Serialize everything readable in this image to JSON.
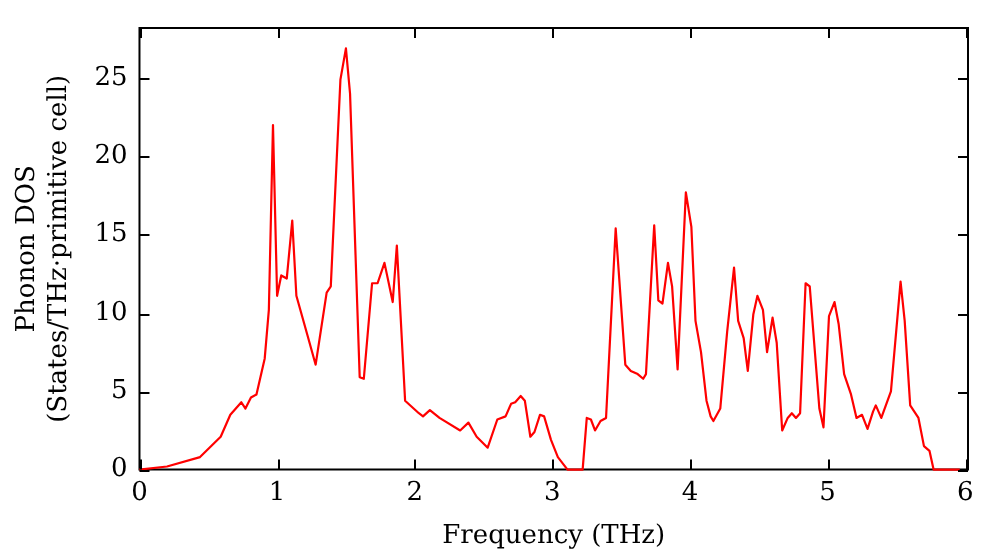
{
  "chart_data": {
    "type": "line",
    "xlabel": "Frequency (THz)",
    "ylabel": "Phonon DOS\n(States/THz·primitive cell)",
    "x": [
      0,
      0.2,
      0.44,
      0.59,
      0.66,
      0.74,
      0.77,
      0.81,
      0.85,
      0.91,
      0.94,
      0.97,
      1.0,
      1.03,
      1.07,
      1.11,
      1.14,
      1.22,
      1.28,
      1.36,
      1.39,
      1.46,
      1.5,
      1.53,
      1.6,
      1.63,
      1.69,
      1.73,
      1.78,
      1.79,
      1.84,
      1.87,
      1.93,
      2.03,
      2.06,
      2.11,
      2.18,
      2.33,
      2.39,
      2.45,
      2.53,
      2.6,
      2.66,
      2.7,
      2.73,
      2.77,
      2.8,
      2.84,
      2.87,
      2.91,
      2.94,
      2.99,
      3.04,
      3.11,
      3.22,
      3.25,
      3.28,
      3.31,
      3.35,
      3.39,
      3.46,
      3.53,
      3.57,
      3.62,
      3.66,
      3.68,
      3.74,
      3.77,
      3.8,
      3.84,
      3.87,
      3.91,
      3.97,
      4.01,
      4.04,
      4.08,
      4.12,
      4.15,
      4.17,
      4.22,
      4.27,
      4.32,
      4.35,
      4.39,
      4.42,
      4.46,
      4.49,
      4.53,
      4.56,
      4.6,
      4.63,
      4.67,
      4.71,
      4.74,
      4.77,
      4.8,
      4.84,
      4.87,
      4.94,
      4.97,
      5.01,
      5.05,
      5.08,
      5.12,
      5.17,
      5.21,
      5.25,
      5.29,
      5.33,
      5.35,
      5.39,
      5.46,
      5.53,
      5.56,
      5.6,
      5.66,
      5.7,
      5.74,
      5.77,
      5.96
    ],
    "series": [
      {
        "color": "#ff0000",
        "values": [
          0,
          0.2,
          0.8,
          2.1,
          3.5,
          4.3,
          3.9,
          4.6,
          4.8,
          7.1,
          10.2,
          22.0,
          11.1,
          12.4,
          12.2,
          15.9,
          11.1,
          8.6,
          6.7,
          11.3,
          11.7,
          24.9,
          26.9,
          24.0,
          5.9,
          5.8,
          11.9,
          11.9,
          13.2,
          13.2,
          10.7,
          14.3,
          4.4,
          3.6,
          3.4,
          3.8,
          3.3,
          2.5,
          3.0,
          2.1,
          1.4,
          3.2,
          3.4,
          4.2,
          4.3,
          4.7,
          4.4,
          2.1,
          2.4,
          3.5,
          3.4,
          1.9,
          0.8,
          0,
          0,
          3.3,
          3.2,
          2.5,
          3.1,
          3.3,
          15.4,
          6.7,
          6.3,
          6.1,
          5.8,
          6.1,
          15.6,
          10.8,
          10.6,
          13.2,
          11.7,
          6.4,
          17.7,
          15.5,
          9.5,
          7.5,
          4.4,
          3.4,
          3.1,
          3.9,
          8.8,
          12.9,
          9.5,
          8.4,
          6.3,
          9.9,
          11.1,
          10.2,
          7.5,
          9.7,
          8.1,
          2.5,
          3.3,
          3.6,
          3.3,
          3.6,
          11.9,
          11.7,
          3.9,
          2.7,
          9.8,
          10.7,
          9.3,
          6.1,
          4.8,
          3.3,
          3.5,
          2.6,
          3.7,
          4.1,
          3.3,
          5.0,
          12.0,
          9.5,
          4.1,
          3.3,
          1.5,
          1.2,
          0,
          0
        ]
      }
    ],
    "xlim": [
      0,
      6.02
    ],
    "xticks": [
      0,
      1,
      2,
      3,
      4,
      5,
      6
    ],
    "ylim": [
      0,
      28.2
    ],
    "yticks": [
      0,
      5,
      10,
      15,
      20,
      25
    ],
    "grid": false,
    "legend": false,
    "marker": "none",
    "line_style": "solid"
  }
}
